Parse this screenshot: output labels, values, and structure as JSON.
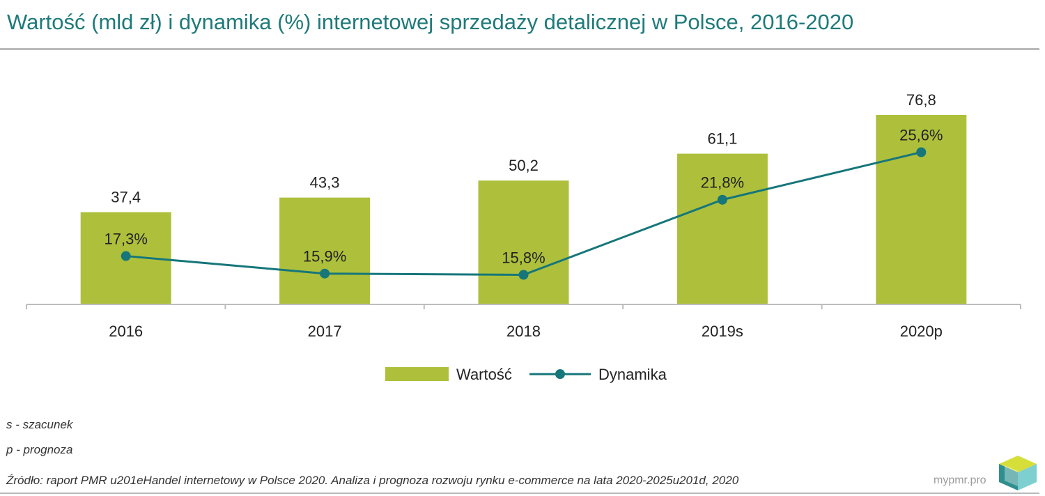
{
  "title": "Wartość (mld zł) i dynamika (%) internetowej sprzedaży detalicznej w Polsce, 2016-2020",
  "chart_data": {
    "type": "bar",
    "categories": [
      "2016",
      "2017",
      "2018",
      "2019s",
      "2020p"
    ],
    "series": [
      {
        "name": "Wartość",
        "type": "bar",
        "values": [
          37.4,
          43.3,
          50.2,
          61.1,
          76.8
        ],
        "labels": [
          "37,4",
          "43,3",
          "50,2",
          "61,1",
          "76,8"
        ],
        "color": "#aec03b"
      },
      {
        "name": "Dynamika",
        "type": "line",
        "values": [
          17.3,
          15.9,
          15.8,
          21.8,
          25.6
        ],
        "labels": [
          "17,3%",
          "15,9%",
          "15,8%",
          "21,8%",
          "25,6%"
        ],
        "color": "#16767a"
      }
    ],
    "legend_position": "bottom-center",
    "grid": false
  },
  "notes": {
    "s": "s - szacunek",
    "p": "p - prognoza"
  },
  "source": "Źródło: raport PMR u201eHandel internetowy w Polsce 2020. Analiza i prognoza rozwoju rynku e-commerce na lata 2020-2025u201d, 2020",
  "brand": "mypmr.pro",
  "colors": {
    "title": "#1f7a7a",
    "bar": "#aec03b",
    "line": "#16767a",
    "axis": "#bdbdbd"
  }
}
